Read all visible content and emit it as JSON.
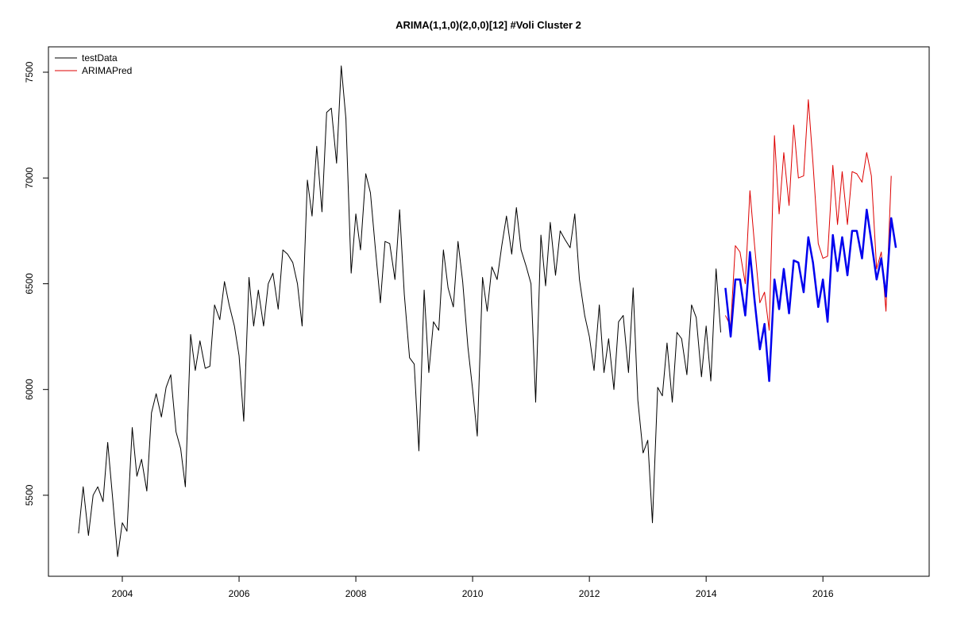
{
  "chart_data": {
    "type": "line",
    "title": "ARIMA(1,1,0)(2,0,0)[12] #Voli Cluster  2",
    "xlim": [
      2002.735,
      2017.82
    ],
    "ylim": [
      5117,
      7620
    ],
    "xticks": [
      2004,
      2006,
      2008,
      2010,
      2012,
      2014,
      2016
    ],
    "yticks": [
      5500,
      6000,
      6500,
      7000,
      7500
    ],
    "legend": "top-left",
    "series": [
      {
        "name": "testData",
        "color": "#000000",
        "width": 1,
        "x": [
          2003.25,
          2003.33,
          2003.42,
          2003.5,
          2003.58,
          2003.67,
          2003.75,
          2003.83,
          2003.92,
          2004.0,
          2004.08,
          2004.17,
          2004.25,
          2004.33,
          2004.42,
          2004.5,
          2004.58,
          2004.67,
          2004.75,
          2004.83,
          2004.92,
          2005.0,
          2005.08,
          2005.17,
          2005.25,
          2005.33,
          2005.42,
          2005.5,
          2005.58,
          2005.67,
          2005.75,
          2005.83,
          2005.92,
          2006.0,
          2006.08,
          2006.17,
          2006.25,
          2006.33,
          2006.42,
          2006.5,
          2006.58,
          2006.67,
          2006.75,
          2006.83,
          2006.92,
          2007.0,
          2007.08,
          2007.17,
          2007.25,
          2007.33,
          2007.42,
          2007.5,
          2007.58,
          2007.67,
          2007.75,
          2007.83,
          2007.92,
          2008.0,
          2008.08,
          2008.17,
          2008.25,
          2008.33,
          2008.42,
          2008.5,
          2008.58,
          2008.67,
          2008.75,
          2008.83,
          2008.92,
          2009.0,
          2009.08,
          2009.17,
          2009.25,
          2009.33,
          2009.42,
          2009.5,
          2009.58,
          2009.67,
          2009.75,
          2009.83,
          2009.92,
          2010.0,
          2010.08,
          2010.17,
          2010.25,
          2010.33,
          2010.42,
          2010.5,
          2010.58,
          2010.67,
          2010.75,
          2010.83,
          2010.92,
          2011.0,
          2011.08,
          2011.17,
          2011.25,
          2011.33,
          2011.42,
          2011.5,
          2011.58,
          2011.67,
          2011.75,
          2011.83,
          2011.92,
          2012.0,
          2012.08,
          2012.17,
          2012.25,
          2012.33,
          2012.42,
          2012.5,
          2012.58,
          2012.67,
          2012.75,
          2012.83,
          2012.92,
          2013.0,
          2013.08,
          2013.17,
          2013.25,
          2013.33,
          2013.42,
          2013.5,
          2013.58,
          2013.67,
          2013.75,
          2013.83,
          2013.92,
          2014.0,
          2014.08,
          2014.17,
          2014.25
        ],
        "values": [
          5320,
          5540,
          5310,
          5500,
          5540,
          5470,
          5750,
          5500,
          5210,
          5370,
          5330,
          5820,
          5590,
          5670,
          5520,
          5890,
          5980,
          5870,
          6010,
          6070,
          5800,
          5720,
          5540,
          6260,
          6090,
          6230,
          6100,
          6110,
          6400,
          6330,
          6510,
          6400,
          6300,
          6160,
          5850,
          6530,
          6300,
          6470,
          6300,
          6500,
          6550,
          6380,
          6660,
          6640,
          6600,
          6500,
          6300,
          6990,
          6820,
          7150,
          6840,
          7310,
          7330,
          7070,
          7530,
          7280,
          6550,
          6830,
          6660,
          7020,
          6930,
          6680,
          6410,
          6700,
          6690,
          6520,
          6850,
          6450,
          6150,
          6120,
          5710,
          6470,
          6080,
          6320,
          6280,
          6660,
          6480,
          6390,
          6700,
          6510,
          6200,
          6000,
          5780,
          6530,
          6370,
          6580,
          6520,
          6680,
          6820,
          6640,
          6860,
          6660,
          6580,
          6500,
          5940,
          6730,
          6490,
          6790,
          6540,
          6750,
          6710,
          6670,
          6830,
          6520,
          6350,
          6250,
          6090,
          6400,
          6080,
          6240,
          6000,
          6320,
          6350,
          6080,
          6480,
          5950,
          5700,
          5760,
          5370,
          6010,
          5970,
          6220,
          5940,
          6270,
          6240,
          6070,
          6400,
          6340,
          6060,
          6300,
          6040,
          6570,
          6270
        ]
      },
      {
        "name": "ARIMAPred",
        "color": "#dd0000",
        "width": 1,
        "x": [
          2014.33,
          2014.42,
          2014.5,
          2014.58,
          2014.67,
          2014.75,
          2014.83,
          2014.92,
          2015.0,
          2015.08,
          2015.17,
          2015.25,
          2015.33,
          2015.42,
          2015.5,
          2015.58,
          2015.67,
          2015.75,
          2015.83,
          2015.92,
          2016.0,
          2016.08,
          2016.17,
          2016.25,
          2016.33,
          2016.42,
          2016.5,
          2016.58,
          2016.67,
          2016.75,
          2016.83,
          2016.92,
          2017.0,
          2017.08,
          2017.17
        ],
        "values": [
          6350,
          6300,
          6680,
          6650,
          6500,
          6940,
          6680,
          6410,
          6460,
          6280,
          7200,
          6830,
          7120,
          6870,
          7250,
          7000,
          7010,
          7370,
          7070,
          6690,
          6620,
          6630,
          7060,
          6780,
          7030,
          6780,
          7030,
          7020,
          6980,
          7120,
          7010,
          6570,
          6650,
          6370,
          7010
        ]
      },
      {
        "color": "#0000ee",
        "width": 2.5,
        "x": [
          2014.33,
          2014.42,
          2014.5,
          2014.58,
          2014.67,
          2014.75,
          2014.83,
          2014.92,
          2015.0,
          2015.08,
          2015.17,
          2015.25,
          2015.33,
          2015.42,
          2015.5,
          2015.58,
          2015.67,
          2015.75,
          2015.83,
          2015.92,
          2016.0,
          2016.08,
          2016.17,
          2016.25,
          2016.33,
          2016.42,
          2016.5,
          2016.58,
          2016.67,
          2016.75,
          2016.83,
          2016.92,
          2017.0,
          2017.08,
          2017.17,
          2017.25
        ],
        "values": [
          6480,
          6250,
          6520,
          6520,
          6350,
          6650,
          6420,
          6190,
          6310,
          6040,
          6520,
          6380,
          6570,
          6360,
          6610,
          6600,
          6460,
          6720,
          6600,
          6390,
          6520,
          6320,
          6730,
          6560,
          6720,
          6540,
          6750,
          6750,
          6620,
          6850,
          6700,
          6520,
          6620,
          6440,
          6810,
          6670
        ]
      }
    ]
  }
}
